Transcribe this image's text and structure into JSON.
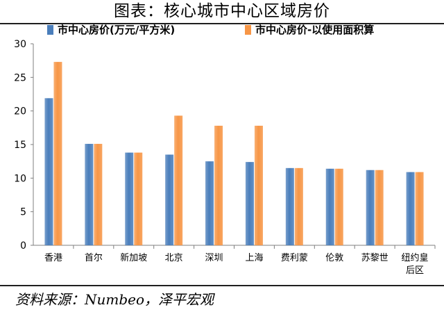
{
  "header": {
    "title": "图表：核心城市中心区域房价"
  },
  "footer": {
    "source": "资料来源：Numbeo，泽平宏观"
  },
  "chart_data": {
    "type": "bar",
    "categories": [
      "香港",
      "首尔",
      "新加坡",
      "北京",
      "深圳",
      "上海",
      "费利蒙",
      "伦敦",
      "苏黎世",
      "纽约皇\n后区"
    ],
    "series": [
      {
        "name": "市中心房价(万元/平方米)",
        "color": "#4a7ebb",
        "values": [
          21.9,
          15.1,
          13.8,
          13.5,
          12.5,
          12.4,
          11.5,
          11.4,
          11.2,
          10.9
        ]
      },
      {
        "name": "市中心房价-以使用面积算",
        "color": "#f79646",
        "values": [
          27.3,
          15.1,
          13.8,
          19.3,
          17.8,
          17.8,
          11.5,
          11.4,
          11.2,
          10.9
        ]
      }
    ],
    "ylim": [
      0,
      30
    ],
    "yticks": [
      0,
      5,
      10,
      15,
      20,
      25,
      30
    ],
    "legend_position": "top",
    "grid": false
  }
}
